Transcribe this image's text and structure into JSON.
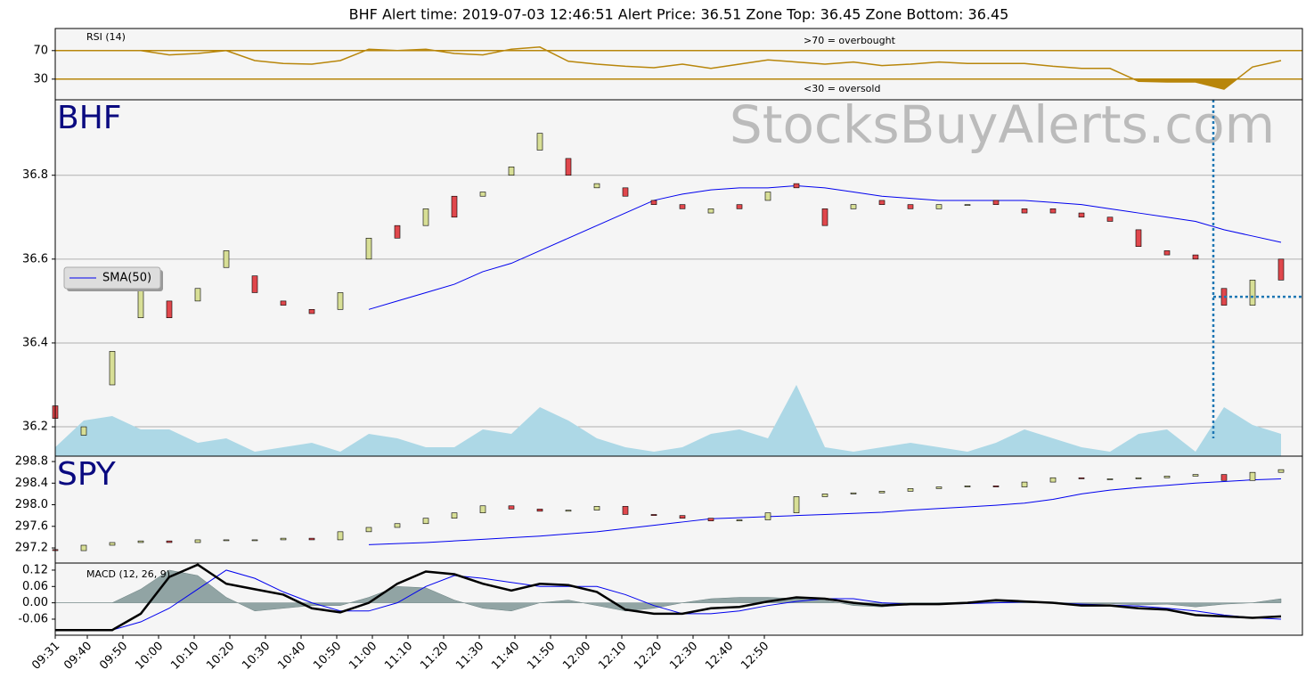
{
  "title": "BHF     Alert time: 2019-07-03 12:46:51          Alert Price: 36.51       Zone Top: 36.45  Zone Bottom: 36.45",
  "chart_data": [
    {
      "type": "line",
      "label": "RSI (14)",
      "overbought_label": ">70 = overbought",
      "oversold_label": "<30 = oversold",
      "color": "#b8860b",
      "x": [
        0,
        8,
        16,
        24,
        32,
        40,
        48,
        56,
        64,
        72,
        80,
        88,
        96,
        104,
        112,
        120,
        128,
        136,
        144,
        152,
        160,
        168,
        176,
        184,
        192,
        200,
        208,
        216,
        224,
        232,
        240,
        248,
        256,
        264,
        272,
        280,
        288,
        296,
        304,
        312,
        320,
        328,
        336,
        344
      ],
      "values": [
        70,
        70,
        70,
        70,
        64,
        66,
        70,
        56,
        52,
        51,
        56,
        72,
        70,
        72,
        66,
        64,
        72,
        75,
        55,
        51,
        48,
        46,
        51,
        45,
        51,
        57,
        54,
        51,
        54,
        49,
        51,
        54,
        52,
        52,
        52,
        48,
        45,
        45,
        27,
        26,
        26,
        16,
        47,
        56
      ],
      "xlim": [
        0,
        350
      ],
      "ylim": [
        1,
        101
      ],
      "yticks": [
        30,
        70
      ]
    },
    {
      "type": "candlestick",
      "symbol": "BHF",
      "watermark": "StocksBuyAlerts.com",
      "up_color": "#d8df96",
      "down_color": "#e0474c",
      "volume_color": "#add8e6",
      "x": [
        0,
        8,
        16,
        24,
        32,
        40,
        48,
        56,
        64,
        72,
        80,
        88,
        96,
        104,
        112,
        120,
        128,
        136,
        144,
        152,
        160,
        168,
        176,
        184,
        192,
        200,
        208,
        216,
        224,
        232,
        240,
        248,
        256,
        264,
        272,
        280,
        288,
        296,
        304,
        312,
        320,
        328,
        336,
        344
      ],
      "open": [
        36.25,
        36.18,
        36.3,
        36.46,
        36.5,
        36.5,
        36.58,
        36.56,
        36.5,
        36.48,
        36.48,
        36.6,
        36.68,
        36.68,
        36.75,
        36.75,
        36.8,
        36.86,
        36.84,
        36.77,
        36.77,
        36.74,
        36.73,
        36.71,
        36.73,
        36.74,
        36.78,
        36.72,
        36.72,
        36.74,
        36.73,
        36.72,
        36.73,
        36.74,
        36.72,
        36.72,
        36.71,
        36.7,
        36.67,
        36.62,
        36.61,
        36.53,
        36.49,
        36.6
      ],
      "close": [
        36.22,
        36.2,
        36.38,
        36.55,
        36.46,
        36.53,
        36.62,
        36.52,
        36.49,
        36.47,
        36.52,
        36.65,
        36.65,
        36.72,
        36.7,
        36.76,
        36.82,
        36.9,
        36.8,
        36.78,
        36.75,
        36.73,
        36.72,
        36.72,
        36.72,
        36.76,
        36.77,
        36.68,
        36.73,
        36.73,
        36.72,
        36.73,
        36.73,
        36.73,
        36.71,
        36.71,
        36.7,
        36.69,
        36.63,
        36.61,
        36.6,
        36.49,
        36.55,
        36.55
      ],
      "volume": [
        10,
        40,
        45,
        30,
        30,
        15,
        20,
        5,
        10,
        15,
        5,
        25,
        20,
        10,
        10,
        30,
        25,
        55,
        40,
        20,
        10,
        5,
        10,
        25,
        30,
        20,
        80,
        10,
        5,
        10,
        15,
        10,
        5,
        15,
        30,
        20,
        10,
        5,
        25,
        30,
        5,
        55,
        35,
        25
      ],
      "sma": {
        "name": "SMA(50)",
        "color": "#0000ee",
        "values": [
          null,
          null,
          null,
          null,
          null,
          null,
          null,
          null,
          null,
          null,
          null,
          36.48,
          36.5,
          36.52,
          36.54,
          36.57,
          36.59,
          36.62,
          36.65,
          36.68,
          36.71,
          36.74,
          36.755,
          36.765,
          36.77,
          36.77,
          36.775,
          36.77,
          36.76,
          36.75,
          36.745,
          36.74,
          36.74,
          36.74,
          36.74,
          36.735,
          36.73,
          36.72,
          36.71,
          36.7,
          36.69,
          36.67,
          36.655,
          36.64
        ]
      },
      "alert_x": 325,
      "alert_price": 36.51,
      "legend": "center left",
      "xlim": [
        0,
        350
      ],
      "ylim": [
        36.13,
        36.98
      ],
      "yticks": [
        36.2,
        36.4,
        36.6,
        36.8
      ],
      "grid": true
    },
    {
      "type": "candlestick",
      "symbol": "SPY",
      "up_color": "#d8df96",
      "down_color": "#e0474c",
      "x": [
        0,
        8,
        16,
        24,
        32,
        40,
        48,
        56,
        64,
        72,
        80,
        88,
        96,
        104,
        112,
        120,
        128,
        136,
        144,
        152,
        160,
        168,
        176,
        184,
        192,
        200,
        208,
        216,
        224,
        232,
        240,
        248,
        256,
        264,
        272,
        280,
        288,
        296,
        304,
        312,
        320,
        328,
        336,
        344
      ],
      "open": [
        297.17,
        297.15,
        297.25,
        297.3,
        297.33,
        297.3,
        297.35,
        297.35,
        297.35,
        297.38,
        297.35,
        297.5,
        297.58,
        297.65,
        297.75,
        297.85,
        297.98,
        297.92,
        297.88,
        297.9,
        297.97,
        297.82,
        297.8,
        297.75,
        297.7,
        297.72,
        297.85,
        298.15,
        298.2,
        298.22,
        298.25,
        298.3,
        298.33,
        298.35,
        298.33,
        298.42,
        298.5,
        298.48,
        298.48,
        298.5,
        298.53,
        298.56,
        298.45,
        298.6
      ],
      "close": [
        297.15,
        297.25,
        297.3,
        297.33,
        297.3,
        297.35,
        297.35,
        297.35,
        297.38,
        297.35,
        297.5,
        297.58,
        297.65,
        297.75,
        297.85,
        297.98,
        297.92,
        297.88,
        297.9,
        297.97,
        297.82,
        297.8,
        297.75,
        297.7,
        297.72,
        297.85,
        298.15,
        298.2,
        298.22,
        298.25,
        298.3,
        298.33,
        298.35,
        298.33,
        298.42,
        298.5,
        298.48,
        298.48,
        298.5,
        298.53,
        298.56,
        298.45,
        298.6,
        298.65
      ],
      "sma": {
        "color": "#0000ee",
        "values": [
          null,
          null,
          null,
          null,
          null,
          null,
          null,
          null,
          null,
          null,
          null,
          297.26,
          297.28,
          297.3,
          297.33,
          297.36,
          297.39,
          297.42,
          297.46,
          297.5,
          297.56,
          297.62,
          297.68,
          297.74,
          297.76,
          297.78,
          297.8,
          297.82,
          297.84,
          297.86,
          297.9,
          297.93,
          297.96,
          297.99,
          298.03,
          298.1,
          298.2,
          298.27,
          298.32,
          298.36,
          298.4,
          298.43,
          298.46,
          298.48
        ]
      },
      "xlim": [
        0,
        350
      ],
      "ylim": [
        296.92,
        298.9
      ],
      "yticks": [
        {
          "value": 297.2,
          "label": "297.2"
        },
        {
          "value": 297.6,
          "label": "297.6"
        },
        {
          "value": 298,
          "label": "298.0"
        },
        {
          "value": 298.4,
          "label": "298.4"
        },
        {
          "value": 298.8,
          "label": "298.8"
        }
      ]
    },
    {
      "type": "macd",
      "label": "MACD (12, 26, 9)",
      "macd_color": "#000000",
      "signal_color": "#0000ee",
      "histogram_color": "#7f9595",
      "x": [
        0,
        8,
        16,
        24,
        32,
        40,
        48,
        56,
        64,
        72,
        80,
        88,
        96,
        104,
        112,
        120,
        128,
        136,
        144,
        152,
        160,
        168,
        176,
        184,
        192,
        200,
        208,
        216,
        224,
        232,
        240,
        248,
        256,
        264,
        272,
        280,
        288,
        296,
        304,
        312,
        320,
        328,
        336,
        344
      ],
      "macd": [
        -0.1,
        -0.1,
        -0.1,
        -0.04,
        0.095,
        0.14,
        0.07,
        0.05,
        0.03,
        -0.02,
        -0.035,
        0,
        0.07,
        0.115,
        0.105,
        0.07,
        0.045,
        0.07,
        0.065,
        0.04,
        -0.025,
        -0.04,
        -0.04,
        -0.02,
        -0.015,
        0.005,
        0.02,
        0.015,
        0,
        -0.01,
        -0.005,
        -0.005,
        0,
        0.01,
        0.005,
        0,
        -0.01,
        -0.01,
        -0.02,
        -0.025,
        -0.045,
        -0.05,
        -0.055,
        -0.05
      ],
      "signal": [
        -0.1,
        -0.1,
        -0.1,
        -0.07,
        -0.02,
        0.05,
        0.12,
        0.09,
        0.04,
        0,
        -0.03,
        -0.03,
        0,
        0.06,
        0.1,
        0.09,
        0.075,
        0.06,
        0.06,
        0.06,
        0.03,
        -0.01,
        -0.04,
        -0.04,
        -0.03,
        -0.01,
        0.005,
        0.015,
        0.015,
        0,
        -0.005,
        -0.005,
        -0.003,
        0,
        0.003,
        0,
        -0.005,
        -0.008,
        -0.012,
        -0.02,
        -0.03,
        -0.045,
        -0.055,
        -0.06
      ],
      "histogram": [
        0,
        0,
        0,
        0.05,
        0.12,
        0.1,
        0.02,
        -0.03,
        -0.02,
        -0.01,
        -0.01,
        0.02,
        0.06,
        0.055,
        0.01,
        -0.02,
        -0.03,
        0,
        0.01,
        -0.01,
        -0.03,
        -0.02,
        0,
        0.015,
        0.02,
        0.02,
        0.015,
        0.01,
        -0.01,
        -0.015,
        -0.005,
        0,
        0.003,
        0.01,
        0.005,
        0.003,
        -0.005,
        -0.003,
        -0.008,
        -0.005,
        -0.015,
        -0.005,
        0,
        0.015
      ],
      "xlim": [
        0,
        350
      ],
      "ylim": [
        -0.119,
        0.146
      ],
      "yticks": [
        {
          "value": -0.06,
          "label": "-0.06"
        },
        {
          "value": 0,
          "label": "0.00"
        },
        0.06,
        0.12
      ],
      "xticks": [
        {
          "value": 0,
          "label": "09:31"
        },
        {
          "value": 9,
          "label": "09:40"
        },
        {
          "value": 19,
          "label": "09:50"
        },
        {
          "value": 29,
          "label": "10:00"
        },
        {
          "value": 39,
          "label": "10:10"
        },
        {
          "value": 49,
          "label": "10:20"
        },
        {
          "value": 59,
          "label": "10:30"
        },
        {
          "value": 69,
          "label": "10:40"
        },
        {
          "value": 79,
          "label": "10:50"
        },
        {
          "value": 89,
          "label": "11:00"
        },
        {
          "value": 99,
          "label": "11:10"
        },
        {
          "value": 109,
          "label": "11:20"
        },
        {
          "value": 119,
          "label": "11:30"
        },
        {
          "value": 129,
          "label": "11:40"
        },
        {
          "value": 139,
          "label": "11:50"
        },
        {
          "value": 149,
          "label": "12:00"
        },
        {
          "value": 159,
          "label": "12:10"
        },
        {
          "value": 169,
          "label": "12:20"
        },
        {
          "value": 179,
          "label": "12:30"
        },
        {
          "value": 189,
          "label": "12:40"
        },
        {
          "value": 199,
          "label": "12:50"
        }
      ]
    }
  ]
}
